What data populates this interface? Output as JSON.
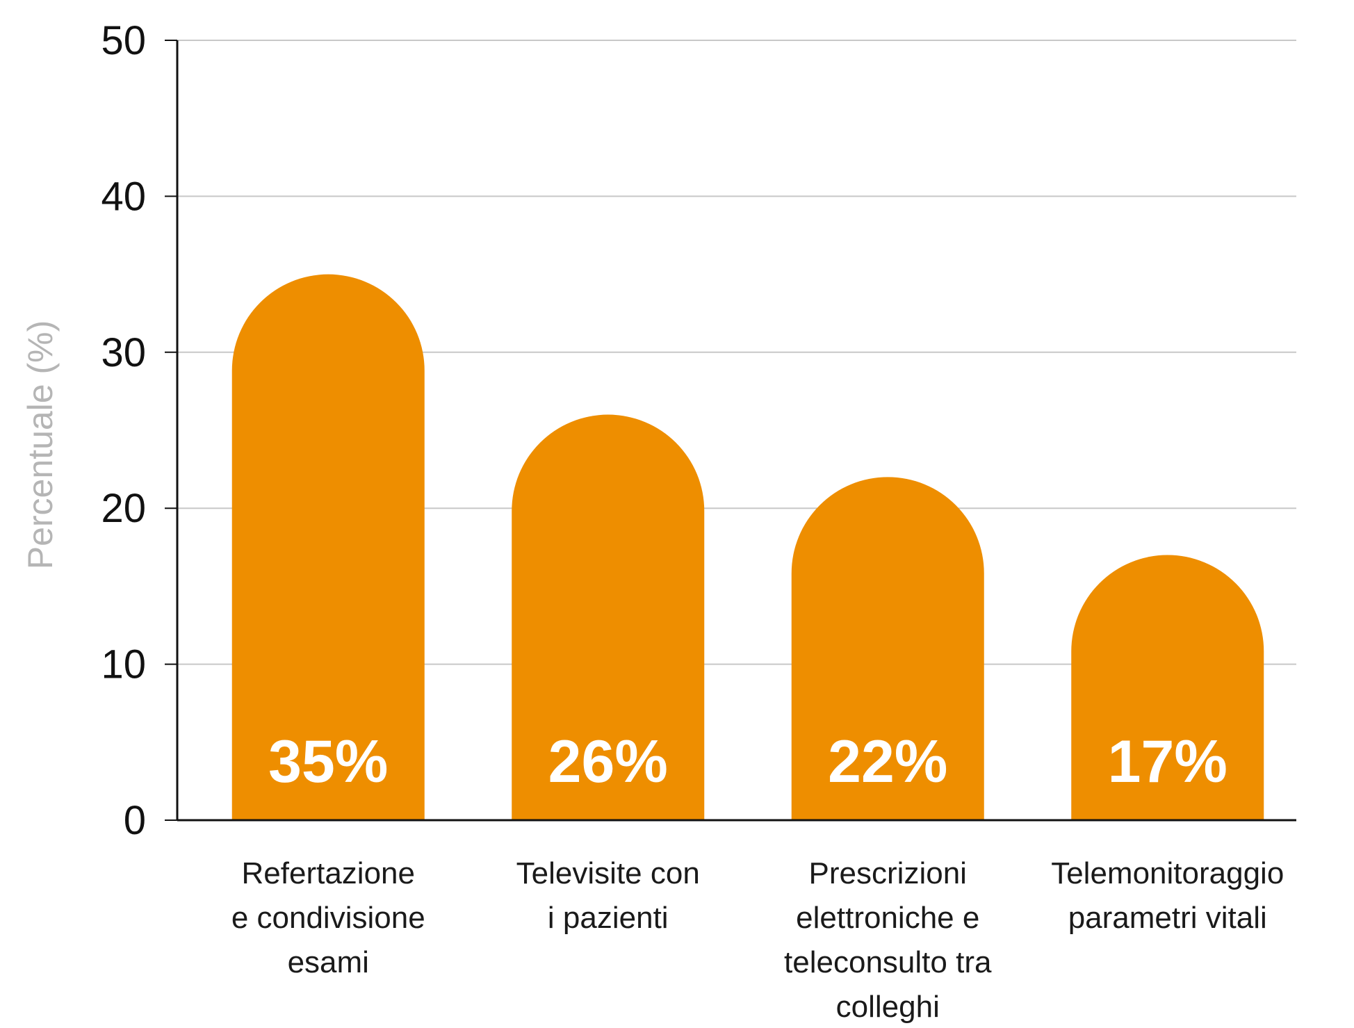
{
  "chart_data": {
    "type": "bar",
    "ylabel": "Percentuale (%)",
    "xlabel": "",
    "ylim": [
      0,
      50
    ],
    "yticks": [
      0,
      10,
      20,
      30,
      40,
      50
    ],
    "grid": true,
    "categories": [
      [
        "Refertazione",
        "e condivisione",
        "esami"
      ],
      [
        "Televisite con",
        "i pazienti"
      ],
      [
        "Prescrizioni",
        "elettroniche e",
        "teleconsulto tra",
        "colleghi"
      ],
      [
        "Telemonitoraggio",
        "parametri vitali"
      ]
    ],
    "values": [
      35,
      26,
      22,
      17
    ],
    "data_labels": [
      "35%",
      "26%",
      "22%",
      "17%"
    ],
    "colors": {
      "bar": "#ee8e00",
      "grid": "#c8c8c8",
      "axis": "#111111"
    }
  }
}
